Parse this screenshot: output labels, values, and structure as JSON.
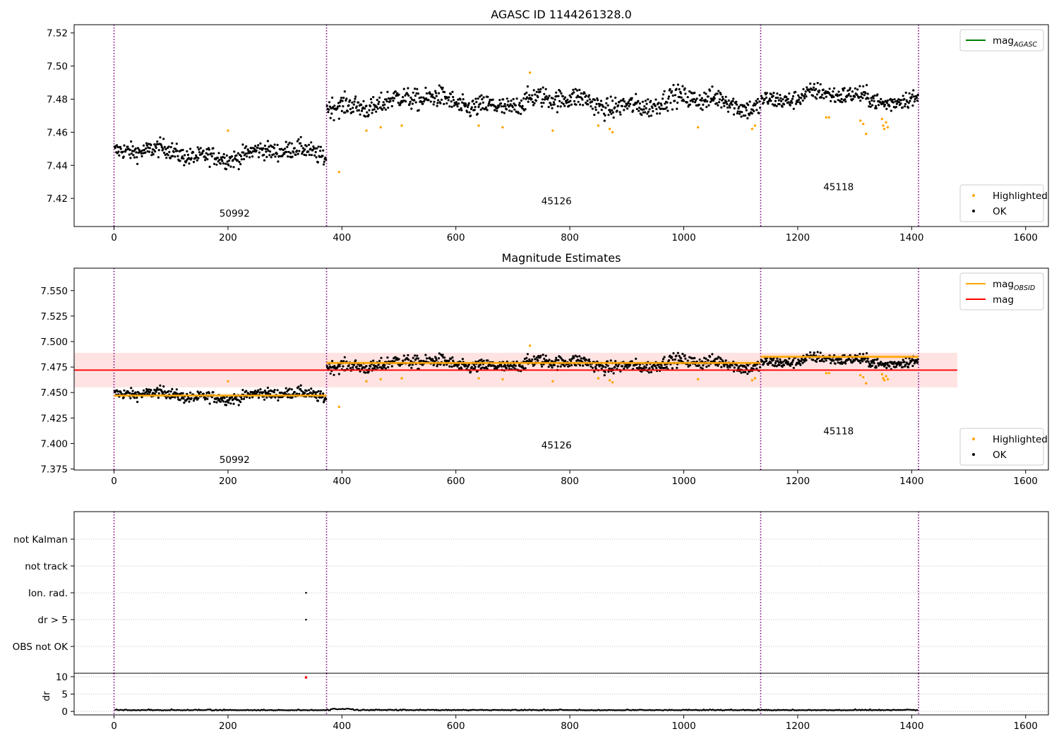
{
  "chart_data": [
    {
      "id": "p1",
      "type": "scatter",
      "title": "AGASC ID 1144261328.0",
      "xlim": [
        -70,
        1640
      ],
      "ylim": [
        7.403,
        7.525
      ],
      "xticks": [
        0,
        200,
        400,
        600,
        800,
        1000,
        1200,
        1400,
        1600
      ],
      "yticks": [
        7.42,
        7.44,
        7.46,
        7.48,
        7.5,
        7.52
      ],
      "ytick_labels": [
        "7.42",
        "7.44",
        "7.46",
        "7.48",
        "7.50",
        "7.52"
      ],
      "obs_boundaries": [
        0,
        373,
        1135,
        1412
      ],
      "obsids": [
        {
          "label": "50992",
          "x": 185,
          "y": 7.409
        },
        {
          "label": "45126",
          "x": 750,
          "y": 7.4165
        },
        {
          "label": "45118",
          "x": 1245,
          "y": 7.425
        }
      ],
      "segments": [
        {
          "x0": 0,
          "x1": 373,
          "center": 7.447,
          "amp": 0.006
        },
        {
          "x0": 373,
          "x1": 1135,
          "center": 7.478,
          "amp": 0.007
        },
        {
          "x0": 1135,
          "x1": 1412,
          "center": 7.481,
          "amp": 0.006
        }
      ],
      "highlighted": [
        [
          200,
          7.461
        ],
        [
          395,
          7.436
        ],
        [
          443,
          7.461
        ],
        [
          468,
          7.463
        ],
        [
          505,
          7.464
        ],
        [
          640,
          7.464
        ],
        [
          682,
          7.463
        ],
        [
          730,
          7.496
        ],
        [
          770,
          7.461
        ],
        [
          850,
          7.464
        ],
        [
          870,
          7.462
        ],
        [
          875,
          7.46
        ],
        [
          1025,
          7.463
        ],
        [
          1120,
          7.462
        ],
        [
          1125,
          7.464
        ],
        [
          1250,
          7.469
        ],
        [
          1255,
          7.469
        ],
        [
          1310,
          7.467
        ],
        [
          1315,
          7.465
        ],
        [
          1320,
          7.459
        ],
        [
          1350,
          7.464
        ],
        [
          1355,
          7.466
        ],
        [
          1352,
          7.462
        ],
        [
          1358,
          7.463
        ],
        [
          1348,
          7.468
        ]
      ],
      "legend_upper": [
        {
          "label": "mag",
          "sub": "AGASC",
          "color": "#008000",
          "style": "line"
        }
      ],
      "legend_lower": [
        {
          "label": "Highlighted",
          "color": "#ffa500",
          "style": "dot"
        },
        {
          "label": "OK",
          "color": "#000000",
          "style": "dot"
        }
      ]
    },
    {
      "id": "p2",
      "type": "scatter",
      "title": "Magnitude Estimates",
      "xlim": [
        -70,
        1640
      ],
      "ylim": [
        7.374,
        7.572
      ],
      "xticks": [
        0,
        200,
        400,
        600,
        800,
        1000,
        1200,
        1400,
        1600
      ],
      "yticks": [
        7.375,
        7.4,
        7.425,
        7.45,
        7.475,
        7.5,
        7.525,
        7.55
      ],
      "ytick_labels": [
        "7.375",
        "7.400",
        "7.425",
        "7.450",
        "7.475",
        "7.500",
        "7.525",
        "7.550"
      ],
      "obs_boundaries": [
        0,
        373,
        1135,
        1412
      ],
      "obsids": [
        {
          "label": "50992",
          "x": 185,
          "y": 7.381
        },
        {
          "label": "45126",
          "x": 750,
          "y": 7.395
        },
        {
          "label": "45118",
          "x": 1245,
          "y": 7.409
        }
      ],
      "mag_line": {
        "value": 7.472,
        "x0": -70,
        "x1": 1480,
        "band": [
          7.455,
          7.489
        ]
      },
      "obsid_mags": [
        {
          "x0": 0,
          "x1": 373,
          "value": 7.447
        },
        {
          "x0": 373,
          "x1": 1135,
          "value": 7.479
        },
        {
          "x0": 1135,
          "x1": 1412,
          "value": 7.485
        }
      ],
      "legend_upper": [
        {
          "label": "mag",
          "sub": "OBSID",
          "color": "#ffa500",
          "style": "line"
        },
        {
          "label": "mag",
          "sub": "",
          "color": "#ff0000",
          "style": "line"
        }
      ],
      "legend_lower": [
        {
          "label": "Highlighted",
          "color": "#ffa500",
          "style": "dot"
        },
        {
          "label": "OK",
          "color": "#000000",
          "style": "dot"
        }
      ]
    },
    {
      "id": "p3",
      "type": "scatter",
      "xlim": [
        -70,
        1640
      ],
      "categories": [
        "not Kalman",
        "not track",
        "Ion. rad.",
        "dr > 5",
        "OBS not OK"
      ],
      "obs_boundaries": [
        0,
        373,
        1135,
        1412
      ],
      "flag_points": [
        {
          "x": 337,
          "category": "Ion. rad."
        },
        {
          "x": 337,
          "category": "dr > 5"
        }
      ]
    },
    {
      "id": "p4",
      "type": "scatter",
      "ylabel": "dr",
      "xlim": [
        -70,
        1640
      ],
      "ylim": [
        -1,
        11
      ],
      "xticks": [
        0,
        200,
        400,
        600,
        800,
        1000,
        1200,
        1400,
        1600
      ],
      "yticks": [
        0,
        5,
        10
      ],
      "obs_boundaries": [
        0,
        373,
        1135,
        1412
      ],
      "outlier": {
        "x": 337,
        "y": 9.8
      },
      "baseline": 0.3
    }
  ]
}
